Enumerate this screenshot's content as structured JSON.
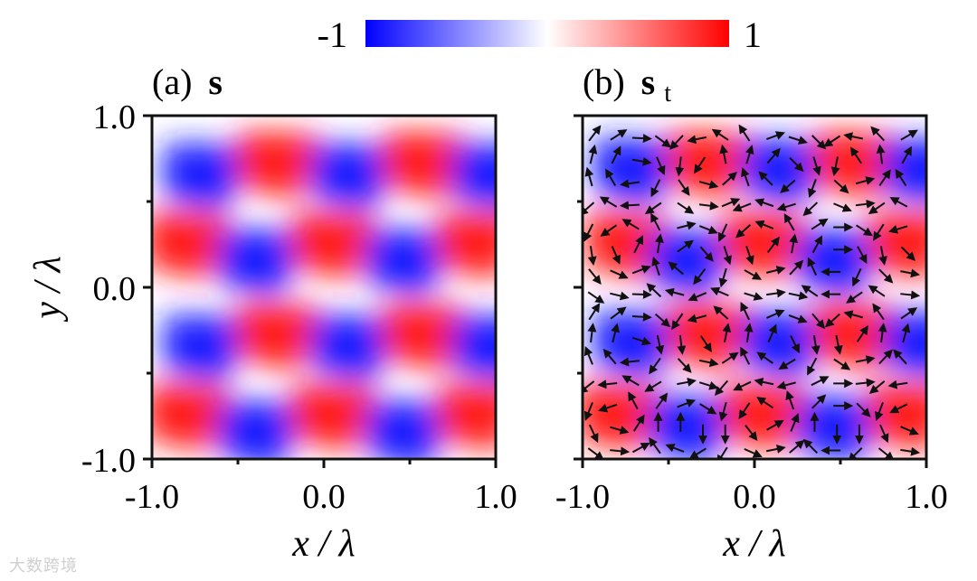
{
  "colorbar": {
    "min_label": "-1",
    "max_label": "1",
    "stops": [
      "#0000ff",
      "#ffffff",
      "#ff0000"
    ]
  },
  "watermark": "大数跨境",
  "chart_data": [
    {
      "type": "heatmap",
      "panel": "(a)",
      "title": "s",
      "title_sub": "",
      "xlabel": "x / λ",
      "ylabel": "y / λ",
      "xlim": [
        -1.0,
        1.0
      ],
      "ylim": [
        -1.0,
        1.0
      ],
      "xticks": [
        "-1.0",
        "0.0",
        "1.0"
      ],
      "yticks": [
        "-1.0",
        "0.0",
        "1.0"
      ],
      "zlim": [
        -1,
        1
      ],
      "field": "sign-alternating checkerboard of lobes, period ≈ 0.86 in x and ≈ 0.86 in y, sheared (x-shift ≈ 0.43 per 0.5 in y)",
      "lobes": [
        {
          "x": -0.7,
          "y": 0.65,
          "v": -1
        },
        {
          "x": -0.27,
          "y": 0.72,
          "v": 1
        },
        {
          "x": 0.16,
          "y": 0.65,
          "v": -1
        },
        {
          "x": 0.58,
          "y": 0.72,
          "v": 1
        },
        {
          "x": 0.98,
          "y": 0.65,
          "v": -1
        },
        {
          "x": -0.8,
          "y": 0.25,
          "v": 1
        },
        {
          "x": -0.38,
          "y": 0.15,
          "v": -1
        },
        {
          "x": 0.05,
          "y": 0.25,
          "v": 1
        },
        {
          "x": 0.48,
          "y": 0.15,
          "v": -1
        },
        {
          "x": 0.9,
          "y": 0.25,
          "v": 1
        },
        {
          "x": -0.7,
          "y": -0.35,
          "v": -1
        },
        {
          "x": -0.27,
          "y": -0.28,
          "v": 1
        },
        {
          "x": 0.16,
          "y": -0.35,
          "v": -1
        },
        {
          "x": 0.58,
          "y": -0.28,
          "v": 1
        },
        {
          "x": 0.98,
          "y": -0.35,
          "v": -1
        },
        {
          "x": -0.8,
          "y": -0.75,
          "v": 1
        },
        {
          "x": -0.38,
          "y": -0.85,
          "v": -1
        },
        {
          "x": 0.05,
          "y": -0.75,
          "v": 1
        },
        {
          "x": 0.48,
          "y": -0.85,
          "v": -1
        },
        {
          "x": 0.9,
          "y": -0.75,
          "v": 1
        }
      ]
    },
    {
      "type": "heatmap",
      "panel": "(b)",
      "title": "s",
      "title_sub": "t",
      "xlabel": "x / λ",
      "ylabel": "",
      "xlim": [
        -1.0,
        1.0
      ],
      "ylim": [
        -1.0,
        1.0
      ],
      "xticks": [
        "-1.0",
        "0.0",
        "1.0"
      ],
      "yticks": [
        "",
        "",
        ""
      ],
      "zlim": [
        -1,
        1
      ],
      "overlay": "vector field arrows (in-plane spin) circulating around each lobe",
      "lobes": [
        {
          "x": -0.7,
          "y": 0.68,
          "v": -1
        },
        {
          "x": -0.27,
          "y": 0.72,
          "v": 1
        },
        {
          "x": 0.16,
          "y": 0.68,
          "v": -1
        },
        {
          "x": 0.58,
          "y": 0.72,
          "v": 1
        },
        {
          "x": 0.98,
          "y": 0.68,
          "v": -1
        },
        {
          "x": -0.75,
          "y": 0.25,
          "v": 1
        },
        {
          "x": -0.38,
          "y": 0.15,
          "v": -1
        },
        {
          "x": 0.05,
          "y": 0.25,
          "v": 1
        },
        {
          "x": 0.48,
          "y": 0.15,
          "v": -1
        },
        {
          "x": 0.9,
          "y": 0.25,
          "v": 1
        },
        {
          "x": -0.7,
          "y": -0.33,
          "v": -1
        },
        {
          "x": -0.27,
          "y": -0.28,
          "v": 1
        },
        {
          "x": 0.16,
          "y": -0.33,
          "v": -1
        },
        {
          "x": 0.58,
          "y": -0.28,
          "v": 1
        },
        {
          "x": 0.98,
          "y": -0.33,
          "v": -1
        },
        {
          "x": -0.8,
          "y": -0.75,
          "v": 1
        },
        {
          "x": -0.38,
          "y": -0.82,
          "v": -1
        },
        {
          "x": 0.05,
          "y": -0.75,
          "v": 1
        },
        {
          "x": 0.48,
          "y": -0.82,
          "v": -1
        },
        {
          "x": 0.9,
          "y": -0.75,
          "v": 1
        }
      ]
    }
  ]
}
